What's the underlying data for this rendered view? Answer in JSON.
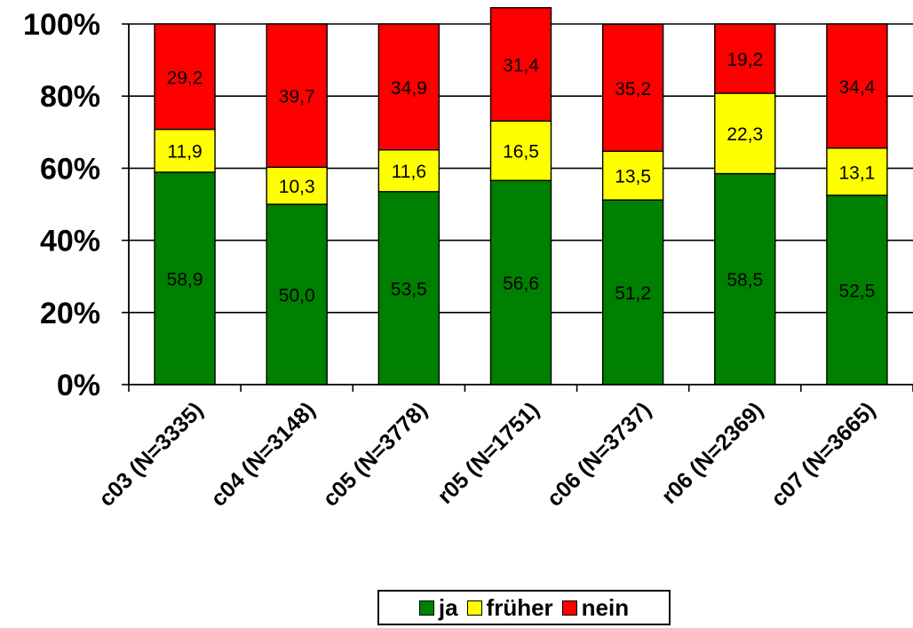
{
  "chart_data": {
    "type": "bar",
    "stacked": true,
    "categories": [
      "c03 (N=3335)",
      "c04 (N=3148)",
      "c05 (N=3778)",
      "r05 (N=1751)",
      "c06 (N=3737)",
      "r06 (N=2369)",
      "c07 (N=3665)"
    ],
    "series": [
      {
        "name": "ja",
        "color": "#008000",
        "values": [
          58.9,
          50.0,
          53.5,
          56.6,
          51.2,
          58.5,
          52.5
        ],
        "labels": [
          "58,9",
          "50,0",
          "53,5",
          "56,6",
          "51,2",
          "58,5",
          "52,5"
        ]
      },
      {
        "name": "früher",
        "color": "#ffff00",
        "values": [
          11.9,
          10.3,
          11.6,
          16.5,
          13.5,
          22.3,
          13.1
        ],
        "labels": [
          "11,9",
          "10,3",
          "11,6",
          "16,5",
          "13,5",
          "22,3",
          "13,1"
        ]
      },
      {
        "name": "nein",
        "color": "#ff0000",
        "values": [
          29.2,
          39.7,
          34.9,
          31.4,
          35.2,
          19.2,
          34.4
        ],
        "labels": [
          "29,2",
          "39,7",
          "34,9",
          "31,4",
          "35,2",
          "19,2",
          "34,4"
        ]
      }
    ],
    "yticks": [
      "0%",
      "20%",
      "40%",
      "60%",
      "80%",
      "100%"
    ],
    "ylim": [
      0,
      100
    ],
    "grid": true,
    "legend_position": "bottom"
  }
}
